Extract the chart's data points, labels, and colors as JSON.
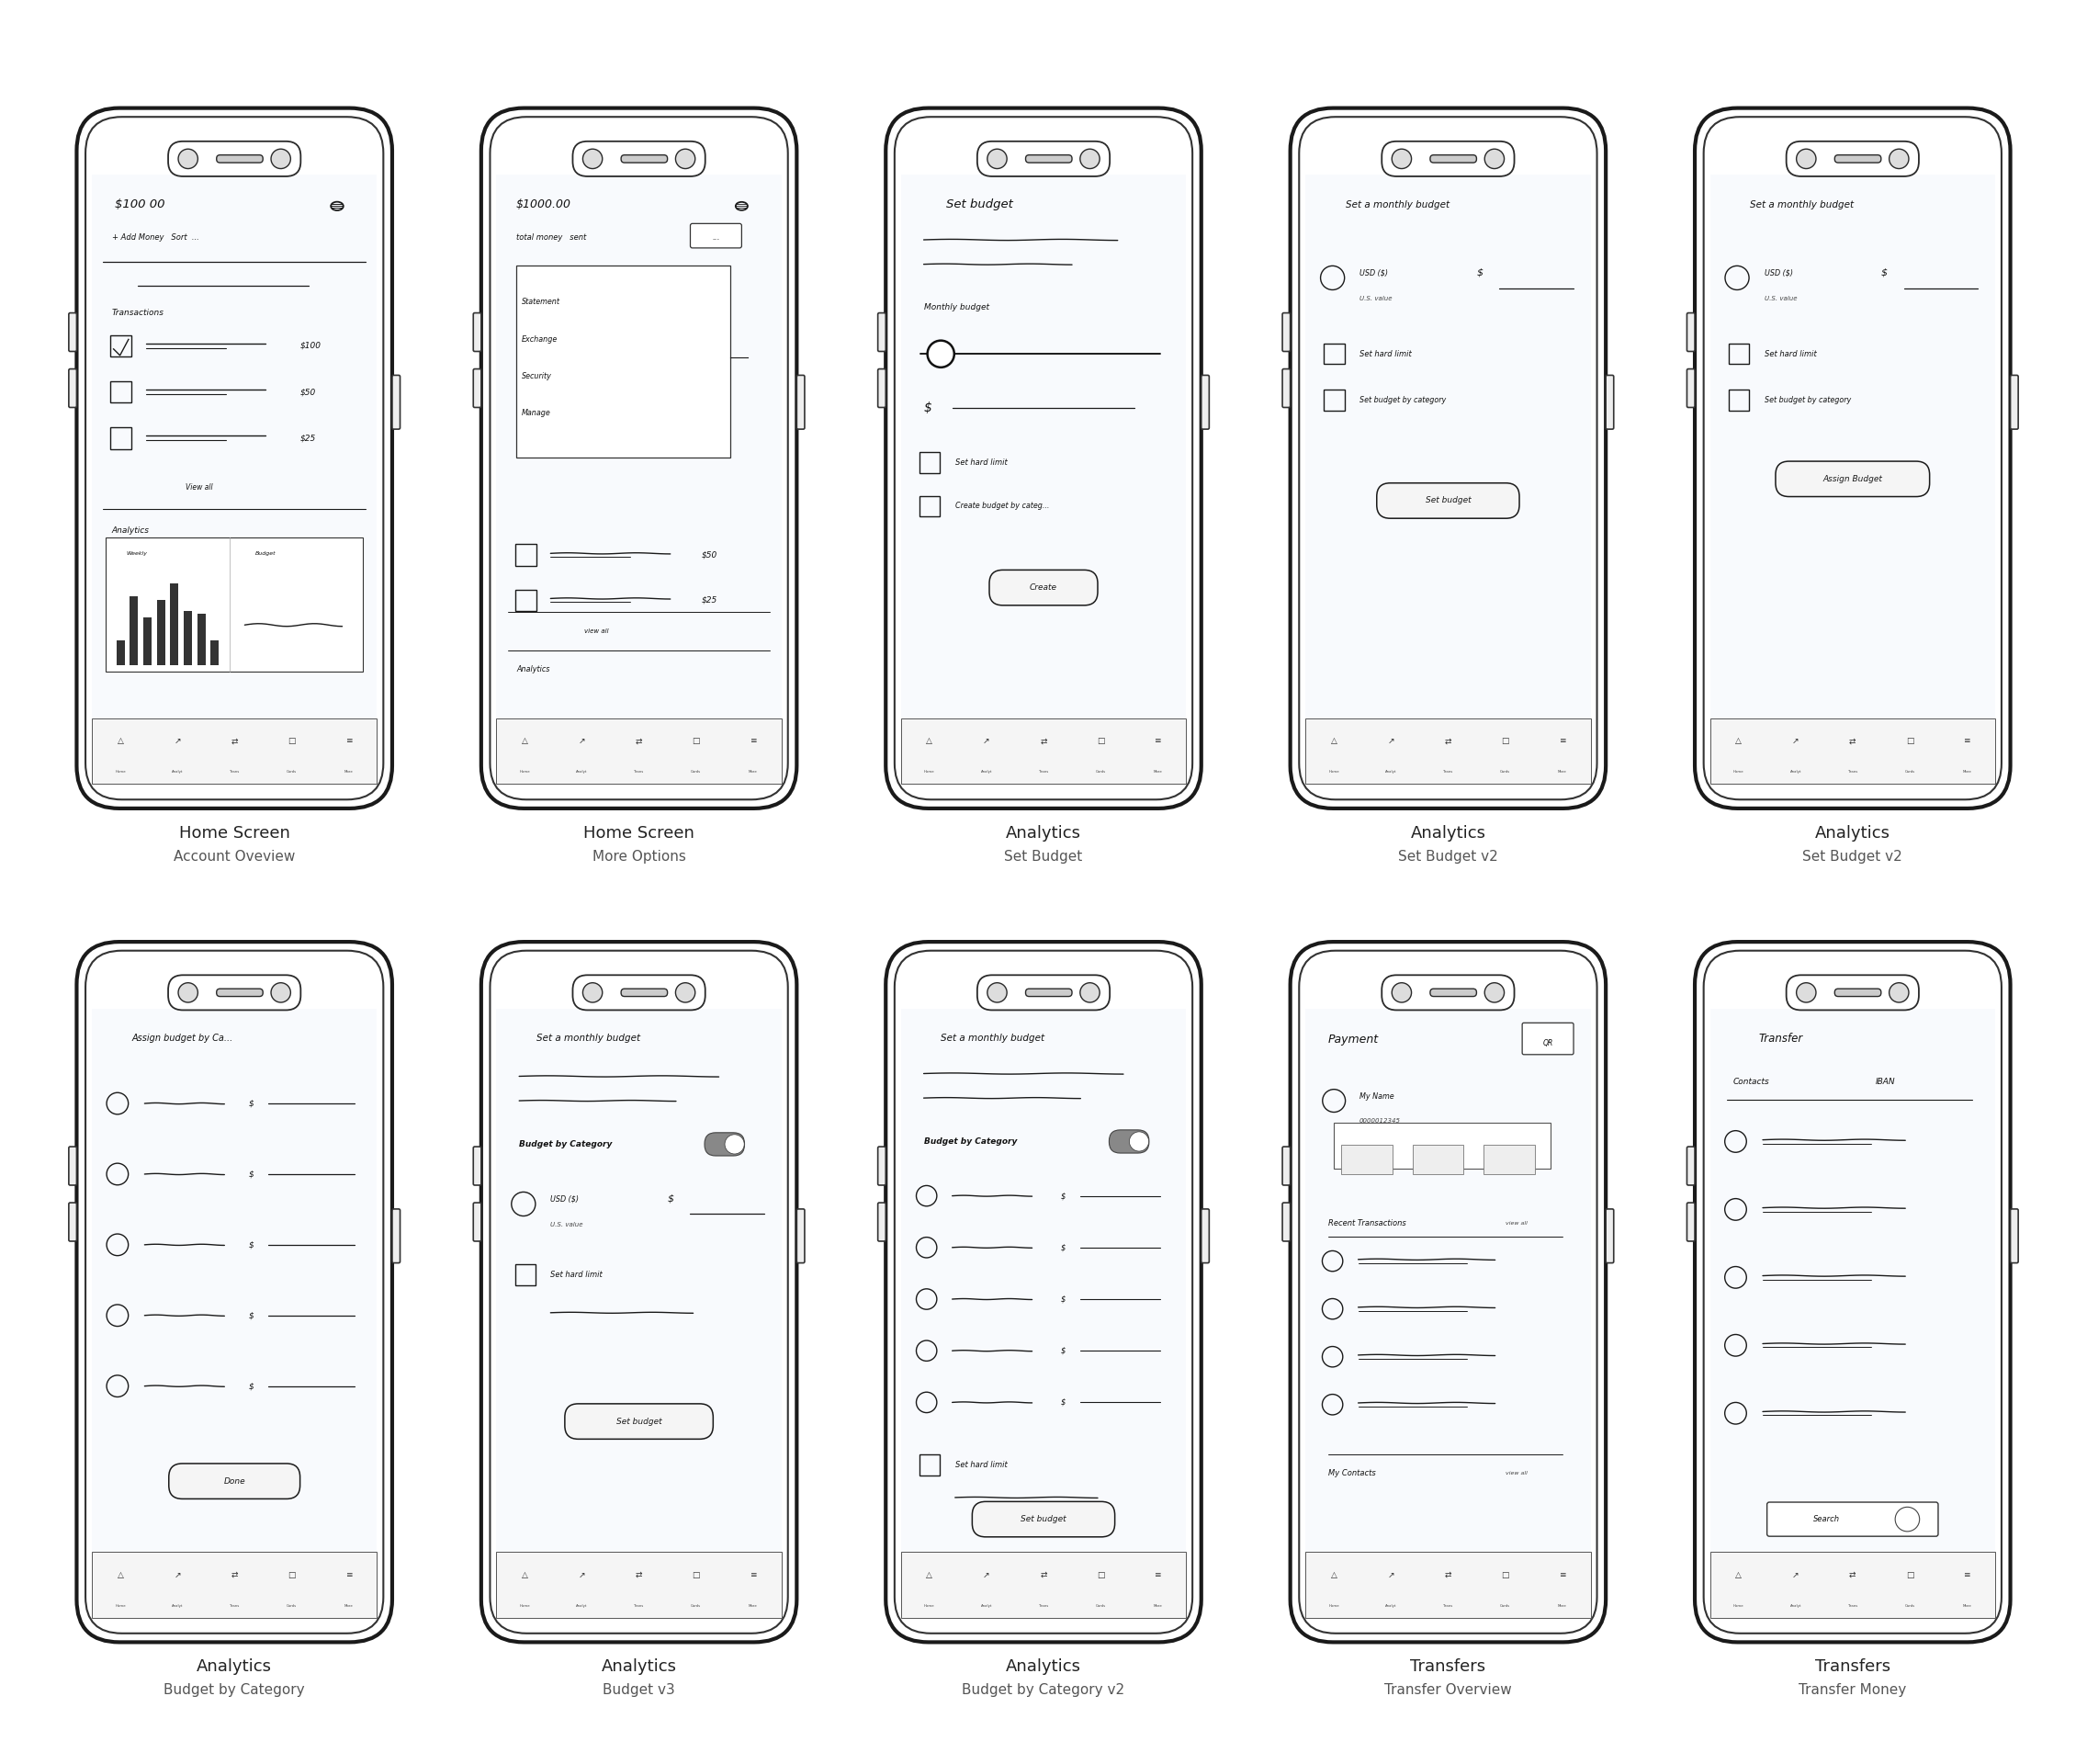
{
  "bg_color": "#ffffff",
  "grid_color": "#b8cfe0",
  "phone_outer_color": "#1a1a1a",
  "phone_inner_color": "#333333",
  "screen_bg": "#f8fafd",
  "ink": "#1a1a1a",
  "phones": [
    {
      "row": 0,
      "col": 0,
      "label1": "Home Screen",
      "label2": "Account Oveview"
    },
    {
      "row": 0,
      "col": 1,
      "label1": "Home Screen",
      "label2": "More Options"
    },
    {
      "row": 0,
      "col": 2,
      "label1": "Analytics",
      "label2": "Set Budget"
    },
    {
      "row": 0,
      "col": 3,
      "label1": "Analytics",
      "label2": "Set Budget v2"
    },
    {
      "row": 0,
      "col": 4,
      "label1": "Analytics",
      "label2": "Set Budget v2"
    },
    {
      "row": 1,
      "col": 0,
      "label1": "Analytics",
      "label2": "Budget by Category"
    },
    {
      "row": 1,
      "col": 1,
      "label1": "Analytics",
      "label2": "Budget v3"
    },
    {
      "row": 1,
      "col": 2,
      "label1": "Analytics",
      "label2": "Budget by Category v2"
    },
    {
      "row": 1,
      "col": 3,
      "label1": "Transfers",
      "label2": "Transfer Overview"
    },
    {
      "row": 1,
      "col": 4,
      "label1": "Transfers",
      "label2": "Transfer Money"
    }
  ],
  "label1_fontsize": 13,
  "label2_fontsize": 11,
  "label1_color": "#222222",
  "label2_color": "#555555"
}
